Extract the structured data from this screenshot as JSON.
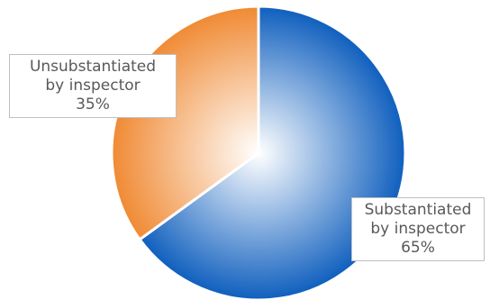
{
  "chart_data": {
    "type": "pie",
    "start_angle_deg": 0,
    "direction": "clockwise",
    "slices": [
      {
        "name_lines": [
          "Substantiated",
          "by inspector"
        ],
        "value": 65,
        "value_label": "65%",
        "color": "#0f5fbe",
        "highlight": "#ffffff"
      },
      {
        "name_lines": [
          "Unsubstantiated",
          "by inspector"
        ],
        "value": 35,
        "value_label": "35%",
        "color": "#f08a34",
        "highlight": "#ffffff"
      }
    ],
    "legend": "none",
    "data_labels": "callout-boxes"
  }
}
